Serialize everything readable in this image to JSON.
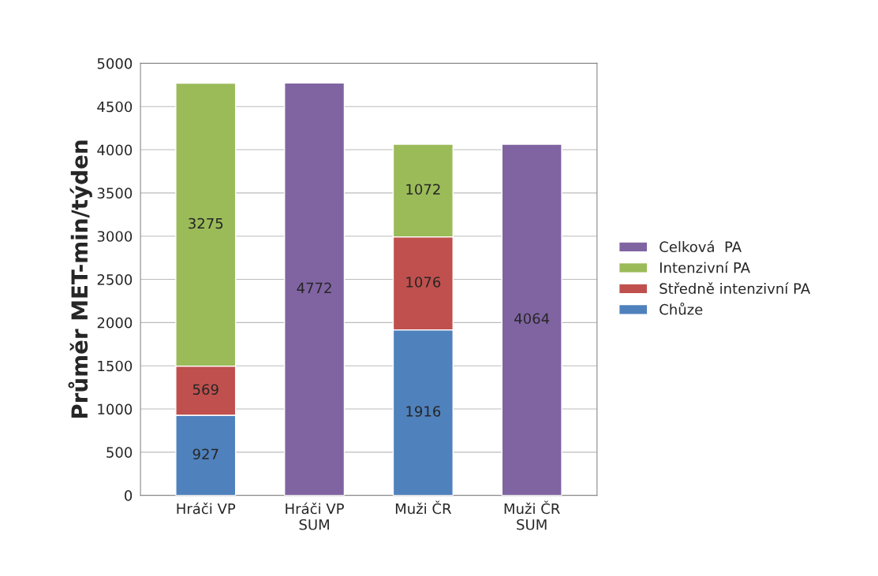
{
  "chart_data": {
    "type": "bar",
    "stacked": true,
    "ylabel": "Průměr MET-min/týden",
    "categories": [
      "Hráči VP",
      "Hráči VP\nSUM",
      "Muži ČR",
      "Muži ČR\nSUM"
    ],
    "series": [
      {
        "name": "Chůze",
        "color": "#4f81bd",
        "values": [
          927,
          null,
          1916,
          null
        ]
      },
      {
        "name": "Středně intenzivní PA",
        "color": "#c0504d",
        "values": [
          569,
          null,
          1076,
          null
        ]
      },
      {
        "name": "Intenzivní PA",
        "color": "#9bbb59",
        "values": [
          3275,
          null,
          1072,
          null
        ]
      },
      {
        "name": "Celková  PA",
        "color": "#8064a2",
        "values": [
          null,
          4772,
          null,
          4064
        ]
      }
    ],
    "ylim": [
      0,
      5000
    ],
    "yticks": [
      0,
      500,
      1000,
      1500,
      2000,
      2500,
      3000,
      3500,
      4000,
      4500,
      5000
    ],
    "grid": "y",
    "legend": "right",
    "data_labels": true
  }
}
